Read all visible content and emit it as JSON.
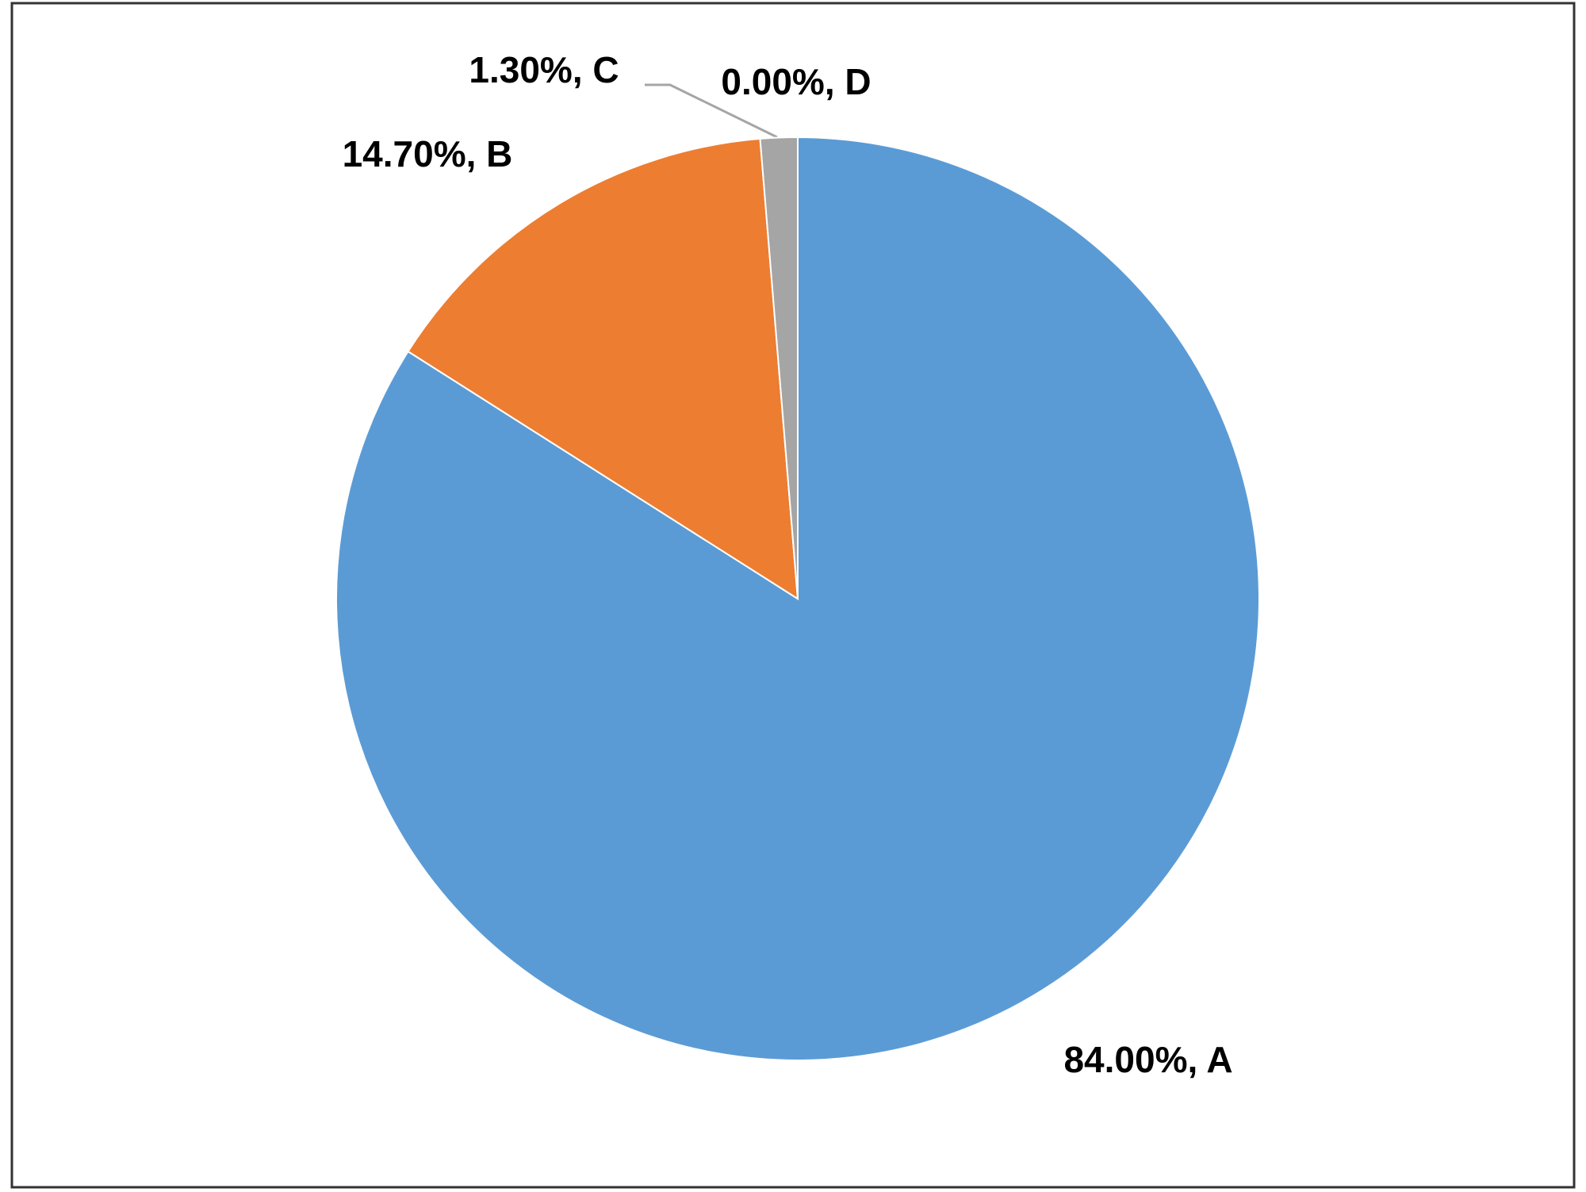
{
  "chart_data": {
    "type": "pie",
    "categories": [
      "A",
      "B",
      "C",
      "D"
    ],
    "values": [
      84,
      14.7,
      1.3,
      0
    ],
    "value_labels": [
      "84.00%, A",
      "14.70%, B",
      "1.30%, C",
      "0.00%, D"
    ],
    "colors": [
      "#5b9bd5",
      "#ed7d31",
      "#a5a5a5",
      "#ffc000"
    ]
  }
}
